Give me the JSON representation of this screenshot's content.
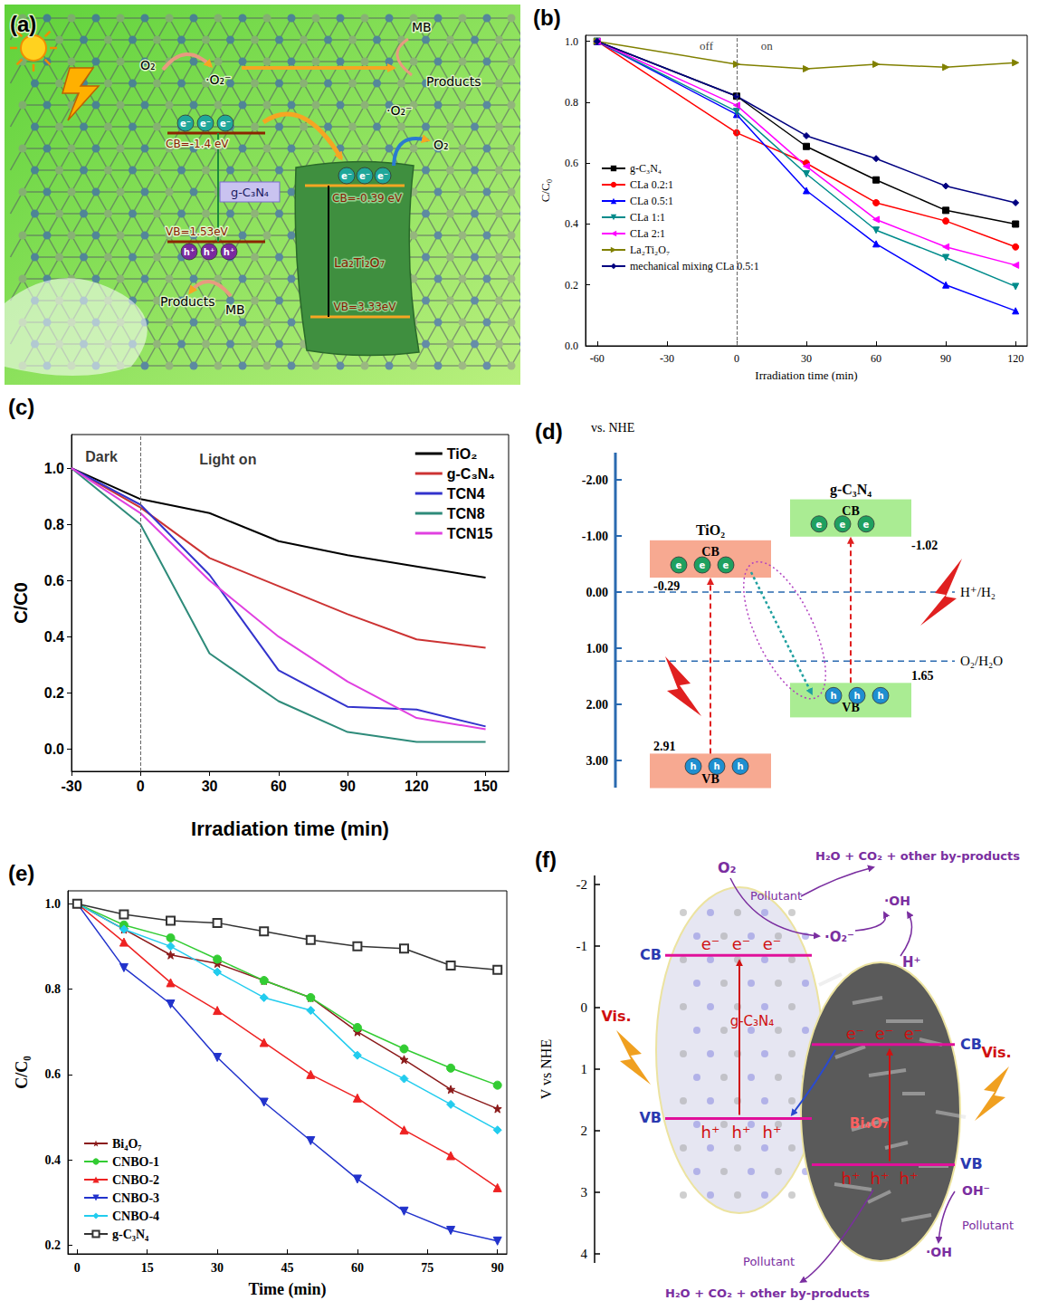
{
  "chart_data": [
    {
      "panel": "(b)",
      "type": "line",
      "x_label": "Irradiation time (min)",
      "y_label": "C/C₀",
      "x": [
        -60,
        0,
        30,
        60,
        90,
        120
      ],
      "series": [
        {
          "name": "g-C₃N₄",
          "color": "#000000",
          "marker": "square",
          "values": [
            1.0,
            0.82,
            0.655,
            0.545,
            0.445,
            0.4
          ]
        },
        {
          "name": "CLa 0.2:1",
          "color": "#ff0000",
          "marker": "circle",
          "values": [
            1.0,
            0.7,
            0.6,
            0.47,
            0.41,
            0.325
          ]
        },
        {
          "name": "CLa 0.5:1",
          "color": "#0000ff",
          "marker": "triangle",
          "values": [
            1.0,
            0.76,
            0.51,
            0.335,
            0.2,
            0.115
          ]
        },
        {
          "name": "CLa 1:1",
          "color": "#008b8b",
          "marker": "triangle-down",
          "values": [
            1.0,
            0.77,
            0.565,
            0.38,
            0.29,
            0.195
          ]
        },
        {
          "name": "CLa 2:1",
          "color": "#ff00ff",
          "marker": "triangle-left",
          "values": [
            1.0,
            0.79,
            0.59,
            0.415,
            0.325,
            0.265
          ]
        },
        {
          "name": "La₂Ti₂O₇",
          "color": "#808000",
          "marker": "triangle-right",
          "values": [
            1.0,
            0.925,
            0.91,
            0.925,
            0.915,
            0.93
          ]
        },
        {
          "name": "mechanical mixing CLa 0.5:1",
          "color": "#000080",
          "marker": "diamond",
          "values": [
            1.0,
            0.82,
            0.69,
            0.615,
            0.525,
            0.47
          ]
        }
      ],
      "xlim": [
        -65,
        125
      ],
      "xticks": [
        -60,
        -30,
        0,
        30,
        60,
        90,
        120
      ],
      "ylim": [
        0,
        1.02
      ],
      "yticks": [
        {
          "value": 0,
          "label": "0.0"
        },
        {
          "value": 0.2,
          "label": "0.2"
        },
        {
          "value": 0.4,
          "label": "0.4"
        },
        {
          "value": 0.6,
          "label": "0.6"
        },
        {
          "value": 0.8,
          "label": "0.8"
        },
        {
          "value": 1,
          "label": "1.0"
        }
      ],
      "grid": false,
      "legend": "left",
      "vline_x": 0,
      "annotations": [
        {
          "text": "off",
          "x": -13,
          "y": 0.985
        },
        {
          "text": "on",
          "x": 13,
          "y": 0.985
        }
      ]
    },
    {
      "panel": "(c)",
      "type": "line",
      "x_label": "Irradiation time (min)",
      "y_label": "C/C0",
      "x": [
        -30,
        0,
        30,
        60,
        90,
        120,
        150
      ],
      "marker": "none",
      "series": [
        {
          "name": "TiO₂",
          "color": "#000000",
          "values": [
            1.0,
            0.89,
            0.84,
            0.74,
            0.69,
            0.65,
            0.61
          ]
        },
        {
          "name": "g-C₃N₄",
          "color": "#cc3333",
          "values": [
            1.0,
            0.86,
            0.68,
            0.58,
            0.48,
            0.39,
            0.36
          ]
        },
        {
          "name": "TCN4",
          "color": "#3333cc",
          "values": [
            1.0,
            0.87,
            0.62,
            0.28,
            0.15,
            0.14,
            0.08
          ]
        },
        {
          "name": "TCN8",
          "color": "#2e8b7a",
          "values": [
            1.0,
            0.8,
            0.34,
            0.17,
            0.06,
            0.025,
            0.025
          ]
        },
        {
          "name": "TCN15",
          "color": "#e040e0",
          "values": [
            1.0,
            0.84,
            0.6,
            0.4,
            0.24,
            0.11,
            0.07
          ]
        }
      ],
      "xlim": [
        -30,
        160
      ],
      "xticks": [
        -30,
        0,
        30,
        60,
        90,
        120,
        150
      ],
      "ylim": [
        -0.08,
        1.12
      ],
      "yticks": [
        {
          "value": 0,
          "label": "0.0"
        },
        {
          "value": 0.2,
          "label": "0.2"
        },
        {
          "value": 0.4,
          "label": "0.4"
        },
        {
          "value": 0.6,
          "label": "0.6"
        },
        {
          "value": 0.8,
          "label": "0.8"
        },
        {
          "value": 1,
          "label": "1.0"
        }
      ],
      "grid": false,
      "legend": "upper right",
      "vline_x": 0,
      "annotations": [
        {
          "text": "Dark",
          "x": -17,
          "y": 1.04
        },
        {
          "text": "Light on",
          "x": 38,
          "y": 1.03
        }
      ]
    },
    {
      "panel": "(e)",
      "type": "line",
      "x_label": "Time (min)",
      "y_label": "C/C₀",
      "x": [
        0,
        10,
        20,
        30,
        40,
        50,
        60,
        70,
        80,
        90
      ],
      "series": [
        {
          "name": "Bi₄O₇",
          "color": "#8b1a1a",
          "marker": "star",
          "values": [
            1.0,
            0.94,
            0.88,
            0.86,
            0.82,
            0.78,
            0.7,
            0.635,
            0.565,
            0.52
          ]
        },
        {
          "name": "CNBO-1",
          "color": "#33cc33",
          "marker": "circle",
          "values": [
            1.0,
            0.95,
            0.92,
            0.87,
            0.82,
            0.78,
            0.71,
            0.66,
            0.615,
            0.575
          ]
        },
        {
          "name": "CNBO-2",
          "color": "#ee2222",
          "marker": "triangle",
          "values": [
            1.0,
            0.91,
            0.815,
            0.75,
            0.675,
            0.6,
            0.545,
            0.47,
            0.41,
            0.335
          ]
        },
        {
          "name": "CNBO-3",
          "color": "#2233cc",
          "marker": "triangle-down",
          "values": [
            1.0,
            0.85,
            0.765,
            0.64,
            0.535,
            0.445,
            0.355,
            0.28,
            0.235,
            0.21
          ]
        },
        {
          "name": "CNBO-4",
          "color": "#22ccee",
          "marker": "diamond",
          "values": [
            1.0,
            0.94,
            0.9,
            0.84,
            0.78,
            0.75,
            0.645,
            0.59,
            0.53,
            0.47
          ]
        },
        {
          "name": "g-C₃N₄",
          "color": "#333333",
          "marker": "square-open",
          "values": [
            1.0,
            0.975,
            0.96,
            0.955,
            0.935,
            0.915,
            0.9,
            0.895,
            0.855,
            0.845
          ]
        }
      ],
      "xlim": [
        -2,
        92
      ],
      "xticks": [
        0,
        15,
        30,
        45,
        60,
        75,
        90
      ],
      "ylim": [
        0.18,
        1.03
      ],
      "yticks": [
        {
          "value": 0.2,
          "label": "0.2"
        },
        {
          "value": 0.4,
          "label": "0.4"
        },
        {
          "value": 0.6,
          "label": "0.6"
        },
        {
          "value": 0.8,
          "label": "0.8"
        },
        {
          "value": 1,
          "label": "1.0"
        }
      ],
      "grid": false,
      "legend": "lower left"
    }
  ],
  "diagrams": {
    "a": {
      "panel": "(a)",
      "texts": {
        "o2": "O₂",
        "superoxide": "·O₂⁻",
        "mb": "MB",
        "products": "Products",
        "gcn": "g-C₃N₄",
        "gcn_cb": "CB=-1.4 eV",
        "gcn_vb": "VB=1.53eV",
        "lto": "La₂Ti₂O₇",
        "lto_cb": "CB=-0.39 eV",
        "lto_vb": "VB=3.33eV"
      },
      "electron": "e⁻",
      "hole": "h⁺"
    },
    "d": {
      "panel": "(d)",
      "axis_title": "vs. NHE",
      "ticks": [
        {
          "value": -2,
          "label": "-2.00"
        },
        {
          "value": -1,
          "label": "-1.00"
        },
        {
          "value": 0,
          "label": "0.00"
        },
        {
          "value": 1,
          "label": "1.00"
        },
        {
          "value": 2,
          "label": "2.00"
        },
        {
          "value": 3,
          "label": "3.00"
        }
      ],
      "materials": [
        {
          "name": "TiO₂",
          "cb": -0.29,
          "vb": 2.91,
          "color": "#f7a58c"
        },
        {
          "name": "g-C₃N₄",
          "cb": -1.02,
          "vb": 1.65,
          "color": "#a6ec8e"
        }
      ],
      "band_labels": {
        "cb": "CB",
        "vb": "VB"
      },
      "levels": [
        {
          "label": "H⁺/H₂",
          "value": 0
        },
        {
          "label": "O₂/H₂O",
          "value": 1.23
        }
      ],
      "electron": "e",
      "hole": "h"
    },
    "f": {
      "panel": "(f)",
      "axis_title": "V vs NHE",
      "ticks": [
        -2,
        -1,
        0,
        1,
        2,
        3,
        4
      ],
      "materials": [
        {
          "name": "g-C₃N₄",
          "cb": -0.85,
          "vb": 1.8
        },
        {
          "name": "Bi₄O₇",
          "cb": 0.6,
          "vb": 2.55
        }
      ],
      "band_labels": {
        "cb": "CB",
        "vb": "VB"
      },
      "light": "Vis.",
      "texts": {
        "o2": "O₂",
        "pollutant": "Pollutant",
        "products": "H₂O + CO₂ + other by-products",
        "oh_radical": "·OH",
        "superoxide": "·O₂⁻",
        "proton": "H⁺",
        "hydroxide": "OH⁻"
      },
      "electron": "e⁻",
      "hole": "h⁺"
    }
  }
}
